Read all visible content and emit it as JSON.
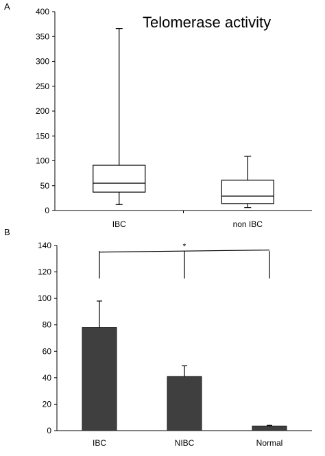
{
  "chart_data": [
    {
      "type": "box",
      "panel_label": "A",
      "title": "Telomerase activity",
      "categories": [
        "IBC",
        "non IBC"
      ],
      "boxes": [
        {
          "min": 12,
          "q1": 37,
          "median": 55,
          "q3": 91,
          "max": 366
        },
        {
          "min": 6,
          "q1": 14,
          "median": 29,
          "q3": 61,
          "max": 109
        }
      ],
      "ylim": [
        0,
        400
      ],
      "yticks": [
        "0",
        "50",
        "100",
        "150",
        "200",
        "250",
        "300",
        "350",
        "400"
      ],
      "grid": false
    },
    {
      "type": "bar",
      "panel_label": "B",
      "categories": [
        "IBC",
        "NIBC",
        "Normal"
      ],
      "values": [
        78,
        41,
        3.5
      ],
      "errors": [
        20,
        8,
        0.5
      ],
      "ylim": [
        0,
        140
      ],
      "yticks": [
        "0",
        "20",
        "40",
        "60",
        "80",
        "100",
        "120",
        "140"
      ],
      "significance": {
        "marker": "*",
        "y": 135,
        "drop_to": 115
      },
      "grid": false
    }
  ]
}
